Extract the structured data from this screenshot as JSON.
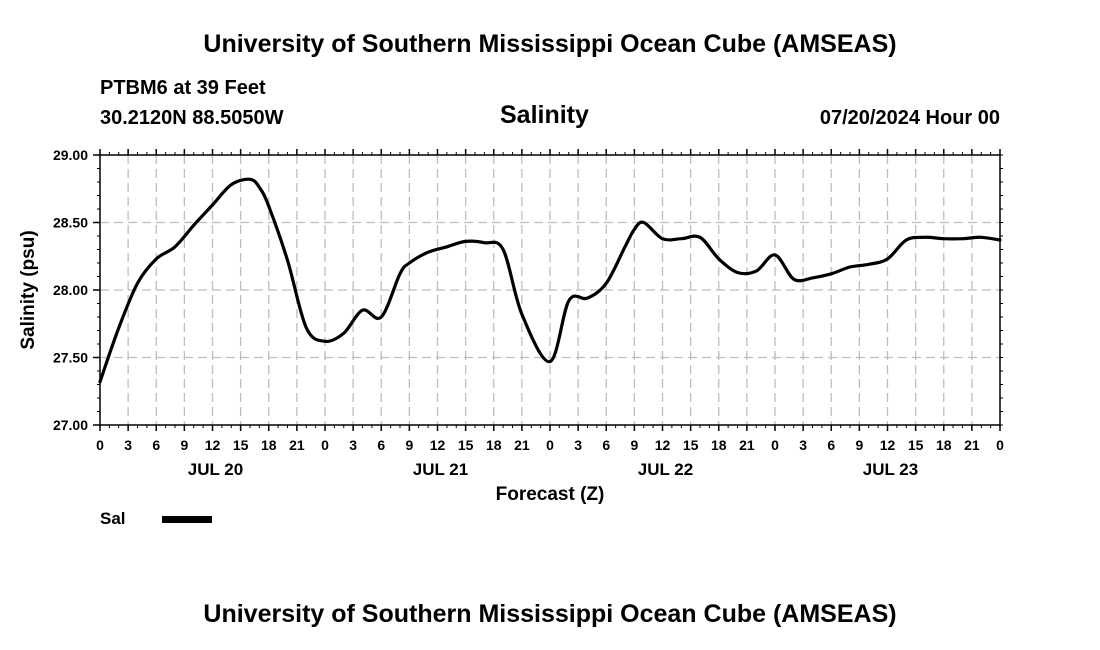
{
  "header": {
    "title": "University of Southern Mississippi Ocean Cube (AMSEAS)",
    "station": "PTBM6 at 39 Feet",
    "coords": "30.2120N  88.5050W",
    "variable": "Salinity",
    "datetime": "07/20/2024 Hour 00"
  },
  "footer": {
    "title": "University of Southern Mississippi Ocean Cube (AMSEAS)"
  },
  "legend": {
    "label": "Sal",
    "color": "#000000"
  },
  "chart_data": {
    "type": "line",
    "title": "Salinity",
    "xlabel": "Forecast (Z)",
    "ylabel": "Salinity (psu)",
    "ylim": [
      27.0,
      29.0
    ],
    "xlim": [
      0,
      96
    ],
    "yticks": [
      "27.00",
      "27.50",
      "28.00",
      "28.50",
      "29.00"
    ],
    "xtick_hours": [
      0,
      3,
      6,
      9,
      12,
      15,
      18,
      21,
      24,
      27,
      30,
      33,
      36,
      39,
      42,
      45,
      48,
      51,
      54,
      57,
      60,
      63,
      66,
      69,
      72,
      75,
      78,
      81,
      84,
      87,
      90,
      93,
      96
    ],
    "xtick_labels": [
      "0",
      "3",
      "6",
      "9",
      "12",
      "15",
      "18",
      "21",
      "0",
      "3",
      "6",
      "9",
      "12",
      "15",
      "18",
      "21",
      "0",
      "3",
      "6",
      "9",
      "12",
      "15",
      "18",
      "21",
      "0",
      "3",
      "6",
      "9",
      "12",
      "15",
      "18",
      "21",
      "0"
    ],
    "day_labels": [
      {
        "hour": 12,
        "label": "JUL 20"
      },
      {
        "hour": 36,
        "label": "JUL 21"
      },
      {
        "hour": 60,
        "label": "JUL 22"
      },
      {
        "hour": 84,
        "label": "JUL 23"
      }
    ],
    "grid": true,
    "series": [
      {
        "name": "Sal",
        "x": [
          0,
          2,
          4,
          6,
          8,
          10,
          12,
          14,
          16,
          17,
          18,
          20,
          22,
          24,
          26,
          28,
          30,
          32,
          33,
          35,
          37,
          39,
          41,
          43,
          45,
          48,
          50,
          52,
          54,
          56,
          57,
          58,
          60,
          62,
          64,
          66,
          68,
          70,
          72,
          74,
          76,
          78,
          80,
          82,
          84,
          86,
          88,
          90,
          92,
          94,
          96
        ],
        "values": [
          27.32,
          27.72,
          28.05,
          28.23,
          28.32,
          28.48,
          28.63,
          28.78,
          28.82,
          28.76,
          28.62,
          28.22,
          27.72,
          27.62,
          27.68,
          27.85,
          27.8,
          28.12,
          28.2,
          28.28,
          28.32,
          28.36,
          28.35,
          28.3,
          27.82,
          27.47,
          27.92,
          27.94,
          28.05,
          28.32,
          28.45,
          28.5,
          28.38,
          28.38,
          28.39,
          28.23,
          28.13,
          28.14,
          28.26,
          28.08,
          28.09,
          28.12,
          28.17,
          28.19,
          28.23,
          28.37,
          28.39,
          28.38,
          28.38,
          28.39,
          28.37
        ]
      }
    ]
  }
}
